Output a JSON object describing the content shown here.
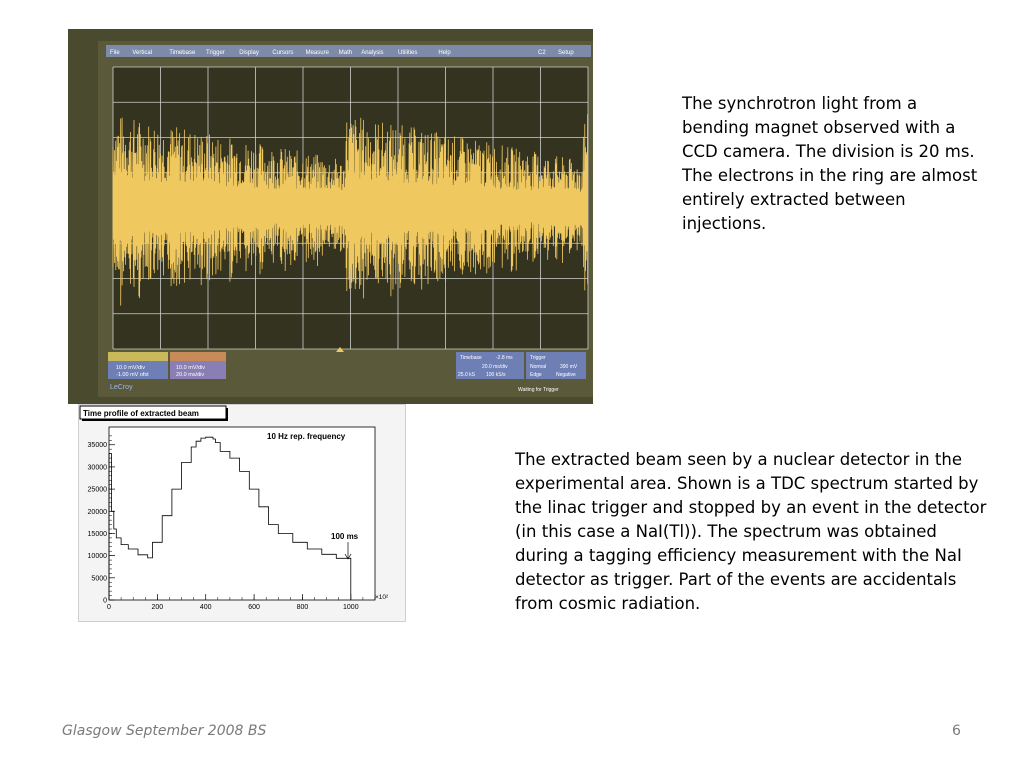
{
  "oscilloscope": {
    "menu": [
      "File",
      "Vertical",
      "Timebase",
      "Trigger",
      "Display",
      "Cursors",
      "Measure",
      "Math",
      "Analysis",
      "Utilities",
      "Help"
    ],
    "channel_label": "C2",
    "setup_label": "Setup",
    "brand": "LeCroy",
    "status": "Waiting for Trigger",
    "readouts": {
      "ch1_scale": "10.0 mV/div",
      "ch1_offset": "-1.00 mV ofst",
      "math_scale": "10.0 mV/div",
      "math_time": "20.0 ms/div",
      "timebase_title": "Timebase",
      "timebase_delay": "-2.8 ms",
      "timebase_div": "20.0 ms/div",
      "sample_rate": "100 kS/s",
      "samples": "25.0 kS",
      "trigger_title": "Trigger",
      "trigger_mode": "Normal",
      "trigger_level": "390 mV",
      "trigger_edge": "Edge",
      "trigger_slope": "Negative"
    },
    "colors": {
      "trace": "#f0c860",
      "grid": "#cfcfcf",
      "screen": "#33331f"
    }
  },
  "histogram": {
    "title": "Time profile of extracted beam",
    "annotation": "10 Hz rep. frequency",
    "marker_label": "100 ms",
    "x_exponent": "×10²",
    "chart_data": {
      "type": "line",
      "x": [
        0,
        10,
        20,
        30,
        50,
        80,
        120,
        160,
        180,
        220,
        260,
        300,
        340,
        360,
        380,
        400,
        430,
        440,
        460,
        500,
        540,
        580,
        620,
        660,
        700,
        760,
        820,
        880,
        940,
        1000
      ],
      "y": [
        33000,
        20000,
        16000,
        14000,
        12500,
        11500,
        10200,
        9500,
        13000,
        19000,
        25000,
        31000,
        34500,
        35800,
        36500,
        36700,
        36300,
        35500,
        33500,
        32000,
        29000,
        25000,
        21000,
        17000,
        15000,
        13000,
        11500,
        10300,
        9400,
        8700
      ],
      "xticks": [
        "0",
        "200",
        "400",
        "600",
        "800",
        "1000"
      ],
      "yticks": [
        "0",
        "5000",
        "10000",
        "15000",
        "20000",
        "25000",
        "30000",
        "35000"
      ],
      "xlim": [
        0,
        1100
      ],
      "ylim": [
        0,
        39000
      ]
    }
  },
  "caption1": "The synchrotron light from a bending magnet observed with a CCD camera. The division is 20 ms. The electrons in the ring are almost entirely extracted between injections.",
  "caption2": "The extracted beam seen by a nuclear detector in the experimental area. Shown is a TDC spectrum started by the linac trigger and stopped by an event in the detector (in this case a NaI(Tl)). The spectrum was obtained during a tagging efficiency measurement with the NaI detector as trigger. Part of the events are accidentals from cosmic radiation.",
  "footer": {
    "left": "Glasgow September 2008 BS",
    "page": "6"
  }
}
